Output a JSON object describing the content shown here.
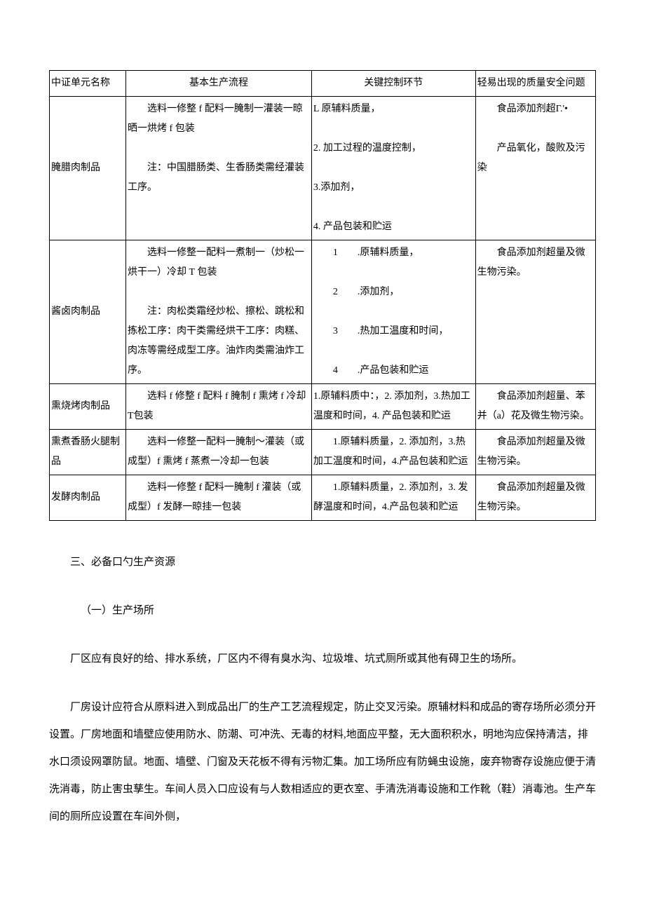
{
  "table": {
    "header": {
      "c1": "中证单元名称",
      "c2": "基本生产流程",
      "c3": "关键控制环节",
      "c4": "轻易出现的质量安全问题"
    },
    "rows": [
      {
        "name": "腌腊肉制品",
        "process": "　　选料一修整 f 配料一腌制一灌装一晾晒一烘烤 f 包装\n\n　　注：中国腊肠类、生香肠类需经灌装工序。",
        "control": "L 原辅料质量，\n\n2. 加工过程的温度控制，\n\n3.添加剂，\n\n4. 产品包装和贮运",
        "issue": "　　食品添加剂超Γ.'•\n\n　　产品氧化，酸败及污染"
      },
      {
        "name": "酱卤肉制品",
        "process": "　　选料一修整一配料一煮制一（炒松一烘干一）冷却 T 包装\n\n　　注：肉松类霜经炒松、擦松、跳松和拣松工序：肉干类需经烘干工序：肉糕、肉冻等需经成型工序。油炸肉类需油炸工序。",
        "control": "　　1　　.原辅料质量，\n\n　　2　　.添加剂，\n\n　　3　　.热加工温度和时间，\n\n　　4　　.产品包装和贮运",
        "issue": "　　食品添加剂超量及微生物污染。"
      },
      {
        "name": "熏烧烤肉制品",
        "process": "　　选料 f 修整 f 配料 f 腌制 f 熏烤 f 冷却 T包装",
        "control": "1.原辅料质中：，2. 添加剂，3.热加工温度和时间，4. 产品包装和贮运",
        "issue": "　　食品添加剂超量、苯并（a）花及微生物污染。"
      },
      {
        "name": "熏煮香肠火腿制品",
        "process": "　　选料一修整一配料一腌制～灌装（或成型）f 熏烤 f 蒸煮一冷却一包装",
        "control": "　　1.原辅料质量，2. 添加剂，3.热加工温度和时间，4.产品包装和贮运",
        "issue": "　　食品添加剂超量及微生物污染。"
      },
      {
        "name": "发酵肉制品",
        "process": "　　选料一修整 f 配料一腌制 f 灌装（或成型）f 发酵一晾挂一包装",
        "control": "　　1.原辅料质量，2. 添加剂，3. 发酵温度和时间，4.产品包装和贮运",
        "issue": "　　食品添加剂超量及微生物污染。"
      }
    ]
  },
  "paragraphs": {
    "p1": "三、必备口勺生产资源",
    "p2": "（一）生产场所",
    "p3": "厂区应有良好的给、排水系统，厂区内不得有臭水沟、垃圾堆、坑式厕所或其他有碍卫生的场所。",
    "p4": "厂房设计应符合从原料进入到成品出厂的生产工艺流程规定，防止交叉污染。原辅材料和成品的寄存场所必须分开设置。厂房地面和墙壁应使用防水、防潮、可冲洗、无毒的材料,地面应平整，无大面积积水，明地沟应保持清洁，排水口须设网罩防鼠。地面、墙壁、门窗及天花板不得有污物汇集。加工场所应有防蝇虫设施，废弃物寄存设施应便于清洗消毒，防止害虫孳生。车间人员入口应设有与人数相适应的更衣室、手清洗消毒设施和工作靴（鞋）消毒池。生产车间的厕所应设置在车间外侧，"
  }
}
